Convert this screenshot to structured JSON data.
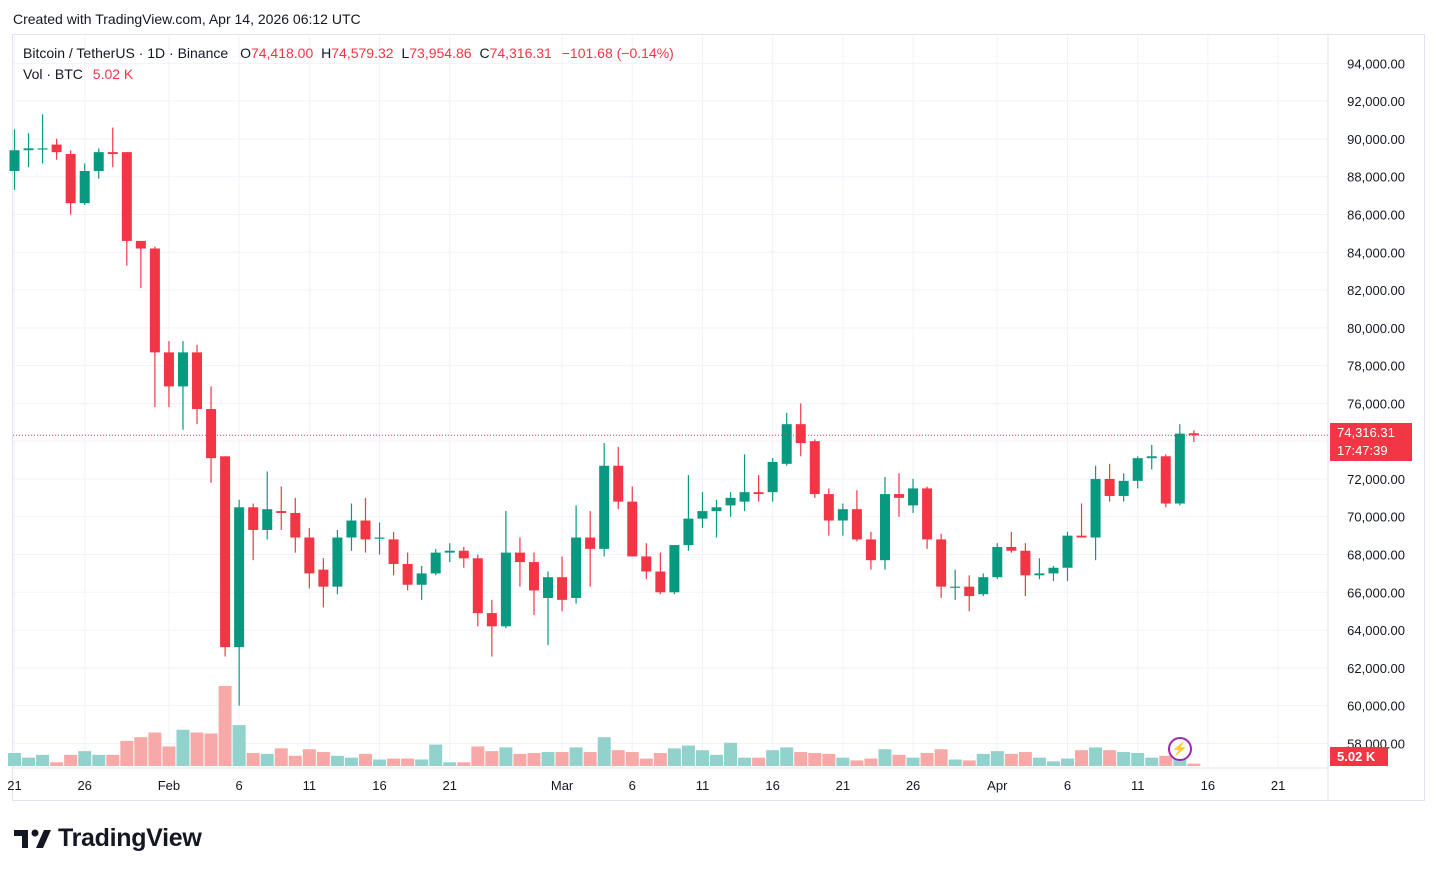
{
  "caption": "Created with TradingView.com, Apr 14, 2026 06:12 UTC",
  "legend": {
    "symbol": "Bitcoin / TetherUS · 1D · Binance",
    "o_label": "O",
    "o_value": "74,418.00",
    "h_label": "H",
    "h_value": "74,579.32",
    "l_label": "L",
    "l_value": "73,954.86",
    "c_label": "C",
    "c_value": "74,316.31",
    "change": "−101.68 (−0.14%)",
    "vol_label": "Vol · BTC",
    "vol_value": "5.02 K"
  },
  "price_tag": {
    "price": "74,316.31",
    "countdown": "17:47:39"
  },
  "vol_tag": "5.02 K",
  "logo_text": "TradingView",
  "colors": {
    "up": "#089981",
    "down": "#f23645",
    "up_vol": "#92d2cc",
    "down_vol": "#f7a9a7",
    "grid": "#f0f3fa"
  },
  "chart_data": {
    "type": "candlestick",
    "title": "Bitcoin / TetherUS · 1D · Binance",
    "ylim": [
      56700,
      95500
    ],
    "y_ticks": [
      "94,000.00",
      "92,000.00",
      "90,000.00",
      "88,000.00",
      "86,000.00",
      "84,000.00",
      "82,000.00",
      "80,000.00",
      "78,000.00",
      "76,000.00",
      "74,000.00",
      "72,000.00",
      "70,000.00",
      "68,000.00",
      "66,000.00",
      "64,000.00",
      "62,000.00",
      "60,000.00",
      "58,000.00"
    ],
    "x_ticks": [
      {
        "label": "21",
        "idx": 0
      },
      {
        "label": "26",
        "idx": 5
      },
      {
        "label": "Feb",
        "idx": 11
      },
      {
        "label": "6",
        "idx": 16
      },
      {
        "label": "11",
        "idx": 21
      },
      {
        "label": "16",
        "idx": 26
      },
      {
        "label": "21",
        "idx": 31
      },
      {
        "label": "Mar",
        "idx": 39
      },
      {
        "label": "6",
        "idx": 44
      },
      {
        "label": "11",
        "idx": 49
      },
      {
        "label": "16",
        "idx": 54
      },
      {
        "label": "21",
        "idx": 59
      },
      {
        "label": "26",
        "idx": 64
      },
      {
        "label": "Apr",
        "idx": 70
      },
      {
        "label": "6",
        "idx": 75
      },
      {
        "label": "11",
        "idx": 80
      },
      {
        "label": "16",
        "idx": 85
      },
      {
        "label": "21",
        "idx": 90
      }
    ],
    "first_date": "Jan 21",
    "last_close": 74316.31,
    "candles": [
      {
        "o": 88300,
        "h": 90500,
        "l": 87300,
        "c": 89400,
        "v": 1.4
      },
      {
        "o": 89400,
        "h": 90300,
        "l": 88500,
        "c": 89500,
        "v": 0.9
      },
      {
        "o": 89500,
        "h": 91300,
        "l": 88700,
        "c": 89500,
        "v": 1.2
      },
      {
        "o": 89700,
        "h": 90000,
        "l": 88900,
        "c": 89300,
        "v": 0.4
      },
      {
        "o": 89200,
        "h": 89400,
        "l": 86000,
        "c": 86600,
        "v": 1.2
      },
      {
        "o": 86600,
        "h": 88700,
        "l": 86500,
        "c": 88300,
        "v": 1.6
      },
      {
        "o": 88300,
        "h": 89500,
        "l": 87900,
        "c": 89300,
        "v": 1.2
      },
      {
        "o": 89300,
        "h": 90600,
        "l": 88500,
        "c": 89200,
        "v": 1.2
      },
      {
        "o": 89300,
        "h": 89300,
        "l": 83300,
        "c": 84600,
        "v": 2.7
      },
      {
        "o": 84600,
        "h": 84600,
        "l": 82100,
        "c": 84200,
        "v": 3.1
      },
      {
        "o": 84200,
        "h": 84300,
        "l": 75800,
        "c": 78700,
        "v": 3.6
      },
      {
        "o": 78700,
        "h": 79300,
        "l": 75800,
        "c": 76900,
        "v": 2.1
      },
      {
        "o": 76900,
        "h": 79300,
        "l": 74600,
        "c": 78700,
        "v": 3.9
      },
      {
        "o": 78700,
        "h": 79100,
        "l": 74900,
        "c": 75700,
        "v": 3.6
      },
      {
        "o": 75700,
        "h": 76900,
        "l": 71800,
        "c": 73100,
        "v": 3.5
      },
      {
        "o": 73200,
        "h": 73200,
        "l": 62600,
        "c": 63100,
        "v": 8.6
      },
      {
        "o": 63100,
        "h": 70900,
        "l": 60000,
        "c": 70500,
        "v": 4.4
      },
      {
        "o": 70500,
        "h": 70700,
        "l": 67700,
        "c": 69300,
        "v": 1.4
      },
      {
        "o": 69300,
        "h": 72400,
        "l": 68800,
        "c": 70400,
        "v": 1.3
      },
      {
        "o": 70300,
        "h": 71600,
        "l": 69300,
        "c": 70200,
        "v": 1.9
      },
      {
        "o": 70200,
        "h": 71000,
        "l": 68100,
        "c": 68900,
        "v": 1.1
      },
      {
        "o": 68900,
        "h": 69400,
        "l": 66200,
        "c": 67000,
        "v": 1.8
      },
      {
        "o": 67200,
        "h": 67800,
        "l": 65200,
        "c": 66300,
        "v": 1.5
      },
      {
        "o": 66300,
        "h": 69300,
        "l": 65900,
        "c": 68900,
        "v": 1.1
      },
      {
        "o": 68900,
        "h": 70700,
        "l": 68200,
        "c": 69800,
        "v": 0.9
      },
      {
        "o": 69800,
        "h": 71000,
        "l": 68100,
        "c": 68800,
        "v": 1.3
      },
      {
        "o": 68900,
        "h": 69700,
        "l": 68000,
        "c": 68900,
        "v": 0.7
      },
      {
        "o": 68800,
        "h": 69200,
        "l": 66900,
        "c": 67500,
        "v": 0.8
      },
      {
        "o": 67500,
        "h": 68100,
        "l": 66100,
        "c": 66400,
        "v": 0.8
      },
      {
        "o": 66400,
        "h": 67400,
        "l": 65600,
        "c": 67000,
        "v": 0.7
      },
      {
        "o": 67000,
        "h": 68300,
        "l": 66900,
        "c": 68100,
        "v": 2.3
      },
      {
        "o": 68100,
        "h": 68600,
        "l": 67600,
        "c": 68200,
        "v": 0.4
      },
      {
        "o": 68200,
        "h": 68400,
        "l": 67300,
        "c": 67800,
        "v": 0.4
      },
      {
        "o": 67800,
        "h": 68000,
        "l": 64200,
        "c": 64900,
        "v": 2.1
      },
      {
        "o": 64900,
        "h": 65600,
        "l": 62600,
        "c": 64200,
        "v": 1.6
      },
      {
        "o": 64200,
        "h": 70300,
        "l": 64100,
        "c": 68100,
        "v": 2.0
      },
      {
        "o": 68100,
        "h": 68900,
        "l": 66300,
        "c": 67600,
        "v": 1.3
      },
      {
        "o": 67600,
        "h": 68100,
        "l": 64800,
        "c": 66100,
        "v": 1.4
      },
      {
        "o": 65700,
        "h": 67100,
        "l": 63200,
        "c": 66800,
        "v": 1.5
      },
      {
        "o": 66800,
        "h": 67900,
        "l": 65000,
        "c": 65600,
        "v": 1.5
      },
      {
        "o": 65700,
        "h": 70600,
        "l": 65400,
        "c": 68900,
        "v": 2.0
      },
      {
        "o": 68900,
        "h": 70300,
        "l": 66300,
        "c": 68300,
        "v": 1.5
      },
      {
        "o": 68300,
        "h": 73900,
        "l": 67900,
        "c": 72700,
        "v": 3.1
      },
      {
        "o": 72700,
        "h": 73700,
        "l": 70400,
        "c": 70800,
        "v": 1.7
      },
      {
        "o": 70800,
        "h": 71600,
        "l": 67900,
        "c": 67900,
        "v": 1.5
      },
      {
        "o": 67900,
        "h": 68600,
        "l": 66700,
        "c": 67100,
        "v": 0.8
      },
      {
        "o": 67100,
        "h": 68100,
        "l": 65900,
        "c": 66000,
        "v": 1.4
      },
      {
        "o": 66000,
        "h": 68500,
        "l": 65900,
        "c": 68500,
        "v": 1.9
      },
      {
        "o": 68500,
        "h": 72200,
        "l": 68200,
        "c": 69900,
        "v": 2.2
      },
      {
        "o": 69900,
        "h": 71300,
        "l": 69400,
        "c": 70300,
        "v": 1.7
      },
      {
        "o": 70300,
        "h": 70900,
        "l": 68900,
        "c": 70500,
        "v": 1.2
      },
      {
        "o": 70600,
        "h": 71300,
        "l": 70000,
        "c": 71000,
        "v": 2.5
      },
      {
        "o": 70800,
        "h": 73300,
        "l": 70300,
        "c": 71300,
        "v": 0.9
      },
      {
        "o": 71300,
        "h": 72200,
        "l": 70800,
        "c": 71200,
        "v": 0.9
      },
      {
        "o": 71300,
        "h": 73100,
        "l": 70800,
        "c": 72900,
        "v": 1.7
      },
      {
        "o": 72800,
        "h": 75500,
        "l": 72700,
        "c": 74900,
        "v": 2.0
      },
      {
        "o": 74900,
        "h": 76000,
        "l": 73200,
        "c": 73900,
        "v": 1.5
      },
      {
        "o": 74000,
        "h": 74100,
        "l": 71000,
        "c": 71200,
        "v": 1.4
      },
      {
        "o": 71200,
        "h": 71500,
        "l": 69000,
        "c": 69800,
        "v": 1.3
      },
      {
        "o": 69800,
        "h": 70700,
        "l": 69000,
        "c": 70400,
        "v": 0.9
      },
      {
        "o": 70400,
        "h": 71400,
        "l": 68700,
        "c": 68800,
        "v": 0.6
      },
      {
        "o": 68800,
        "h": 69200,
        "l": 67200,
        "c": 67700,
        "v": 0.8
      },
      {
        "o": 67700,
        "h": 72100,
        "l": 67200,
        "c": 71200,
        "v": 1.8
      },
      {
        "o": 71200,
        "h": 72300,
        "l": 70000,
        "c": 71000,
        "v": 1.2
      },
      {
        "o": 70600,
        "h": 72000,
        "l": 70200,
        "c": 71500,
        "v": 0.9
      },
      {
        "o": 71500,
        "h": 71600,
        "l": 68300,
        "c": 68800,
        "v": 1.4
      },
      {
        "o": 68800,
        "h": 69100,
        "l": 65700,
        "c": 66300,
        "v": 1.8
      },
      {
        "o": 66300,
        "h": 67200,
        "l": 65600,
        "c": 66300,
        "v": 0.7
      },
      {
        "o": 66300,
        "h": 66900,
        "l": 65000,
        "c": 65800,
        "v": 0.6
      },
      {
        "o": 65900,
        "h": 67000,
        "l": 65800,
        "c": 66800,
        "v": 1.3
      },
      {
        "o": 66800,
        "h": 68600,
        "l": 66700,
        "c": 68400,
        "v": 1.6
      },
      {
        "o": 68400,
        "h": 69200,
        "l": 68100,
        "c": 68200,
        "v": 1.3
      },
      {
        "o": 68200,
        "h": 68600,
        "l": 65800,
        "c": 66900,
        "v": 1.5
      },
      {
        "o": 66900,
        "h": 67800,
        "l": 66700,
        "c": 67000,
        "v": 0.9
      },
      {
        "o": 67000,
        "h": 67400,
        "l": 66600,
        "c": 67300,
        "v": 0.5
      },
      {
        "o": 67300,
        "h": 69200,
        "l": 66600,
        "c": 69000,
        "v": 0.8
      },
      {
        "o": 69000,
        "h": 70700,
        "l": 68900,
        "c": 68900,
        "v": 1.7
      },
      {
        "o": 68900,
        "h": 72700,
        "l": 67700,
        "c": 72000,
        "v": 2.0
      },
      {
        "o": 72000,
        "h": 72800,
        "l": 70800,
        "c": 71100,
        "v": 1.7
      },
      {
        "o": 71100,
        "h": 72300,
        "l": 70800,
        "c": 71900,
        "v": 1.5
      },
      {
        "o": 71900,
        "h": 73200,
        "l": 71500,
        "c": 73100,
        "v": 1.4
      },
      {
        "o": 73100,
        "h": 73800,
        "l": 72500,
        "c": 73200,
        "v": 0.9
      },
      {
        "o": 73200,
        "h": 73300,
        "l": 70500,
        "c": 70700,
        "v": 1.1
      },
      {
        "o": 70700,
        "h": 74900,
        "l": 70600,
        "c": 74400,
        "v": 2.0
      },
      {
        "o": 74418,
        "h": 74579,
        "l": 73955,
        "c": 74316,
        "v": 0.25
      }
    ]
  }
}
